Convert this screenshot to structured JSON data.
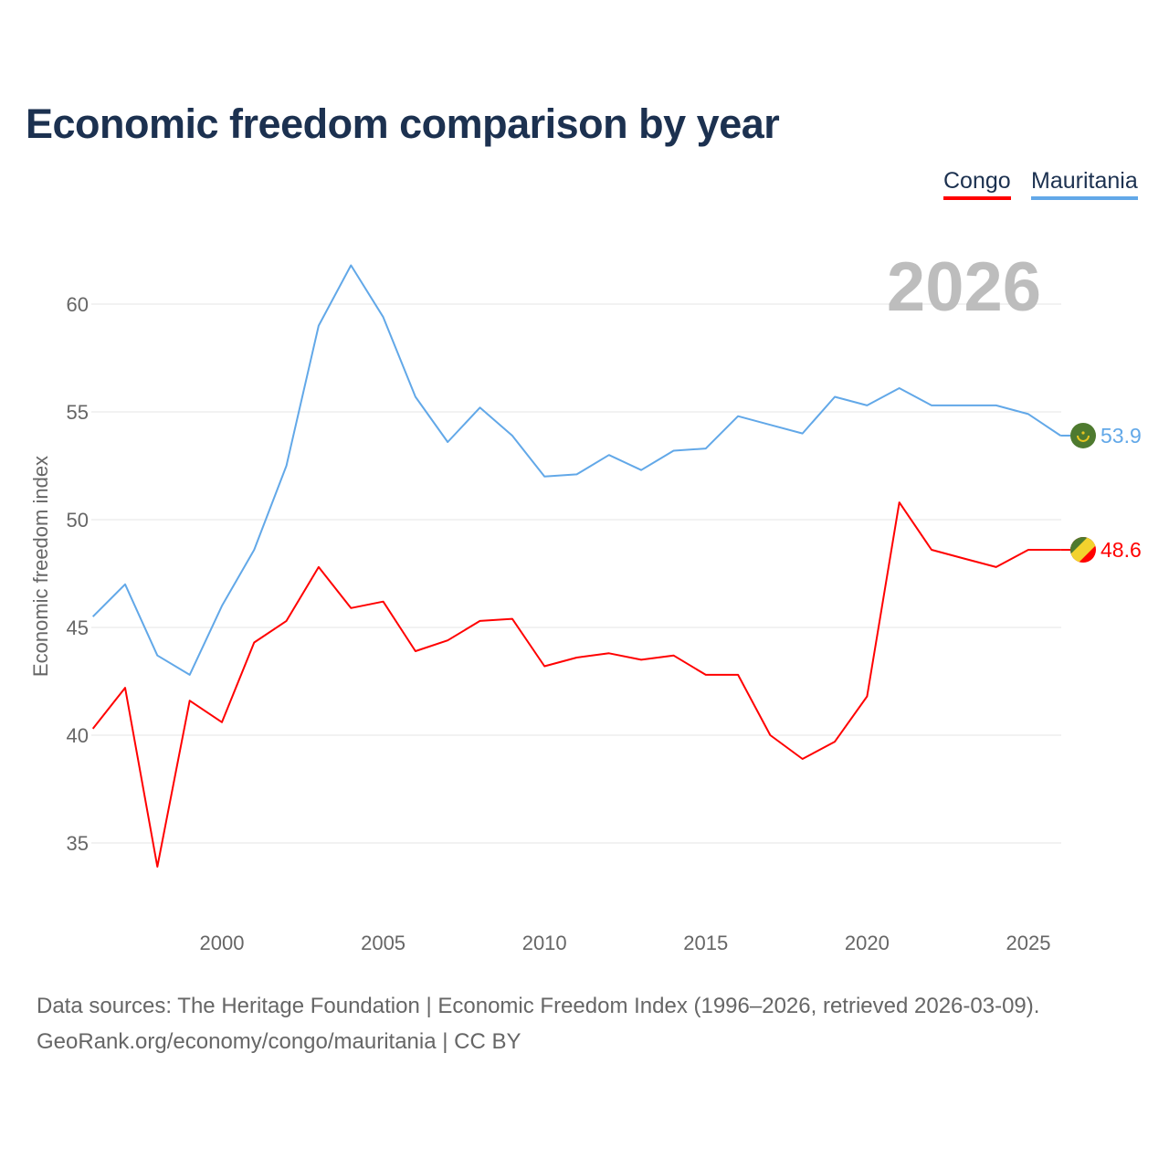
{
  "chart_data": {
    "type": "line",
    "title": "Economic freedom comparison by year",
    "ylabel": "Economic freedom index",
    "xlabel": "",
    "ylim": [
      31,
      63
    ],
    "xlim": [
      1996,
      2026
    ],
    "yticks": [
      35,
      40,
      45,
      50,
      55,
      60
    ],
    "xticks": [
      2000,
      2005,
      2010,
      2015,
      2020,
      2025
    ],
    "grid": true,
    "legend_position": "top-right",
    "year_watermark": "2026",
    "x": [
      1996,
      1997,
      1998,
      1999,
      2000,
      2001,
      2002,
      2003,
      2004,
      2005,
      2006,
      2007,
      2008,
      2009,
      2010,
      2011,
      2012,
      2013,
      2014,
      2015,
      2016,
      2017,
      2018,
      2019,
      2020,
      2021,
      2022,
      2023,
      2024,
      2025,
      2026
    ],
    "series": [
      {
        "name": "Congo",
        "color": "#ff0000",
        "flag": "congo-flag-icon",
        "end_label": "48.6",
        "values": [
          40.3,
          42.2,
          33.9,
          41.6,
          40.6,
          44.3,
          45.3,
          47.8,
          45.9,
          46.2,
          43.9,
          44.4,
          45.3,
          45.4,
          43.2,
          43.6,
          43.8,
          43.5,
          43.7,
          42.8,
          42.8,
          40.0,
          38.9,
          39.7,
          41.8,
          50.8,
          48.6,
          48.2,
          47.8,
          48.6,
          48.6
        ]
      },
      {
        "name": "Mauritania",
        "color": "#62a8e8",
        "flag": "mauritania-flag-icon",
        "end_label": "53.9",
        "values": [
          45.5,
          47.0,
          43.7,
          42.8,
          46.0,
          48.6,
          52.5,
          59.0,
          61.8,
          59.4,
          55.7,
          53.6,
          55.2,
          53.9,
          52.0,
          52.1,
          53.0,
          52.3,
          53.2,
          53.3,
          54.8,
          54.4,
          54.0,
          55.7,
          55.3,
          56.1,
          55.3,
          55.3,
          55.3,
          54.9,
          53.9
        ]
      }
    ]
  },
  "source_line1": "Data sources: The Heritage Foundation | Economic Freedom Index (1996–2026, retrieved 2026-03-09).",
  "source_line2": "GeoRank.org/economy/congo/mauritania | CC BY"
}
